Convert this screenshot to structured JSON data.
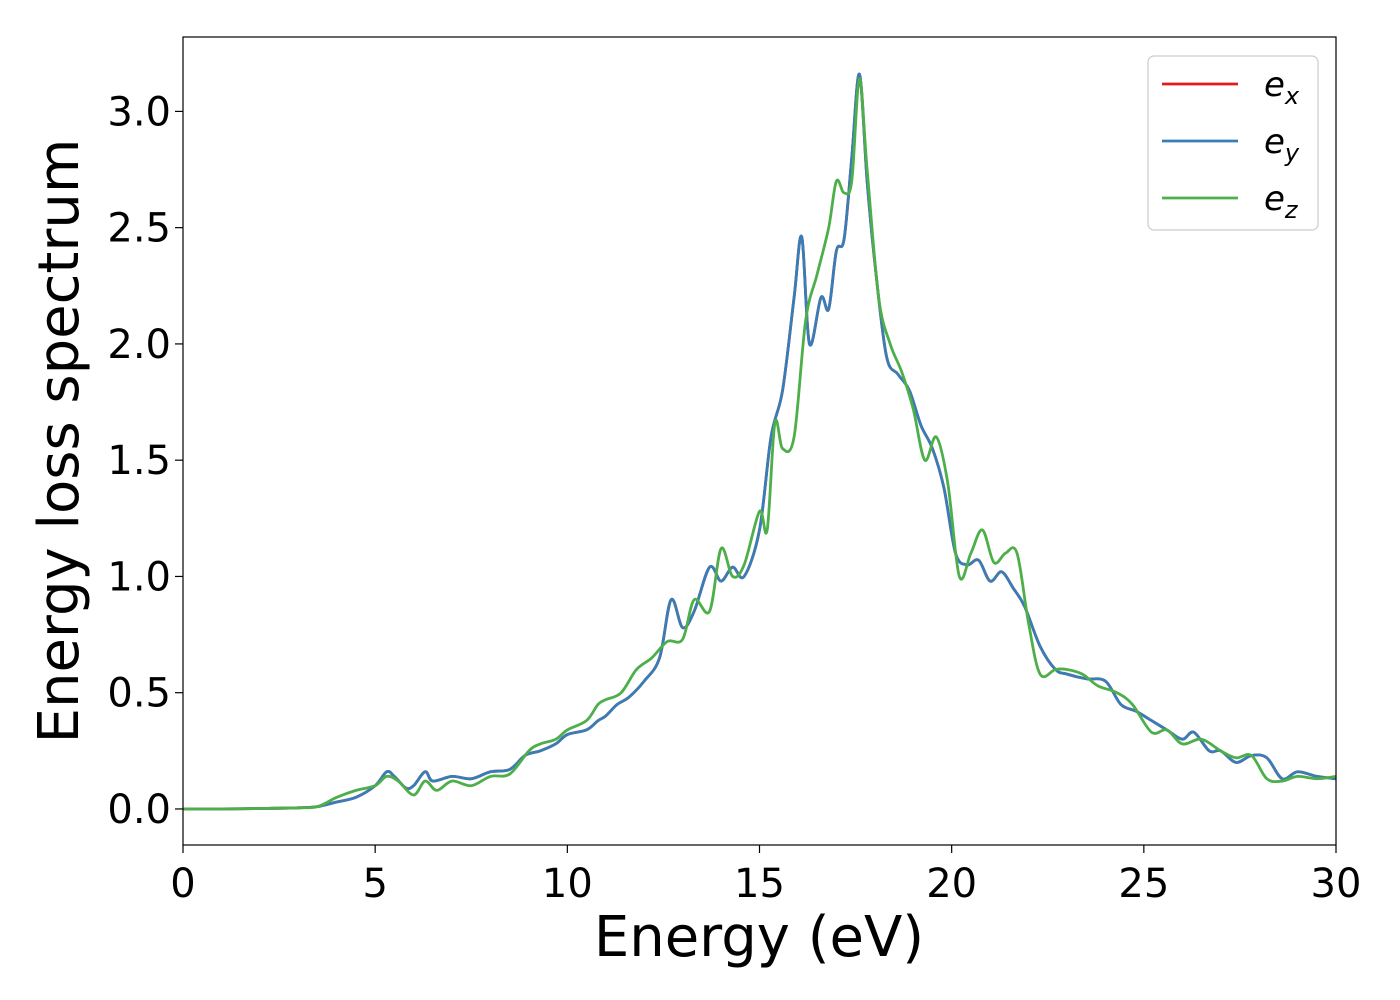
{
  "chart_data": {
    "type": "line",
    "xlabel": "Energy (eV)",
    "ylabel": "Energy loss spectrum",
    "xlim": [
      0,
      30
    ],
    "ylim": [
      -0.155,
      3.32
    ],
    "xticks": [
      "0",
      "5",
      "10",
      "15",
      "20",
      "25",
      "30"
    ],
    "yticks": [
      "0.0",
      "0.5",
      "1.0",
      "1.5",
      "2.0",
      "2.5",
      "3.0"
    ],
    "grid": false,
    "legend_position": "top-right",
    "series": [
      {
        "name": "x",
        "label_base": "e",
        "label_sub": "x",
        "color": "#e41a1c",
        "x": [
          0,
          1,
          2,
          3,
          3.5,
          4,
          4.5,
          5,
          5.3,
          5.5,
          5.8,
          6,
          6.3,
          6.5,
          7,
          7.5,
          8,
          8.5,
          8.9,
          9.3,
          9.7,
          10,
          10.5,
          10.8,
          11,
          11.3,
          11.6,
          12,
          12.4,
          12.7,
          13,
          13.3,
          13.7,
          14,
          14.3,
          14.6,
          15,
          15.3,
          15.6,
          15.9,
          16.1,
          16.3,
          16.6,
          16.8,
          17,
          17.2,
          17.4,
          17.6,
          17.8,
          18,
          18.3,
          18.6,
          18.9,
          19.2,
          19.5,
          19.8,
          20.1,
          20.4,
          20.7,
          21,
          21.3,
          21.6,
          21.9,
          22.3,
          22.7,
          23,
          23.5,
          24,
          24.4,
          24.8,
          25.2,
          25.6,
          26,
          26.3,
          26.7,
          27,
          27.4,
          27.8,
          28.2,
          28.6,
          29,
          29.5,
          30
        ],
        "y": [
          0,
          0,
          0.002,
          0.005,
          0.01,
          0.03,
          0.05,
          0.1,
          0.16,
          0.14,
          0.09,
          0.1,
          0.16,
          0.12,
          0.14,
          0.13,
          0.16,
          0.17,
          0.23,
          0.25,
          0.28,
          0.32,
          0.34,
          0.38,
          0.4,
          0.45,
          0.48,
          0.55,
          0.65,
          0.9,
          0.78,
          0.85,
          1.04,
          0.98,
          1.04,
          1.0,
          1.2,
          1.6,
          1.8,
          2.2,
          2.46,
          2.0,
          2.2,
          2.15,
          2.4,
          2.45,
          2.8,
          3.16,
          2.7,
          2.35,
          1.95,
          1.87,
          1.8,
          1.65,
          1.55,
          1.38,
          1.1,
          1.05,
          1.07,
          0.98,
          1.02,
          0.95,
          0.87,
          0.7,
          0.6,
          0.58,
          0.56,
          0.55,
          0.45,
          0.42,
          0.38,
          0.34,
          0.3,
          0.33,
          0.25,
          0.25,
          0.2,
          0.23,
          0.22,
          0.13,
          0.16,
          0.14,
          0.13
        ]
      },
      {
        "name": "y",
        "label_base": "e",
        "label_sub": "y",
        "color": "#377eb8",
        "x": [
          0,
          1,
          2,
          3,
          3.5,
          4,
          4.5,
          5,
          5.3,
          5.5,
          5.8,
          6,
          6.3,
          6.5,
          7,
          7.5,
          8,
          8.5,
          8.9,
          9.3,
          9.7,
          10,
          10.5,
          10.8,
          11,
          11.3,
          11.6,
          12,
          12.4,
          12.7,
          13,
          13.3,
          13.7,
          14,
          14.3,
          14.6,
          15,
          15.3,
          15.6,
          15.9,
          16.1,
          16.3,
          16.6,
          16.8,
          17,
          17.2,
          17.4,
          17.6,
          17.8,
          18,
          18.3,
          18.6,
          18.9,
          19.2,
          19.5,
          19.8,
          20.1,
          20.4,
          20.7,
          21,
          21.3,
          21.6,
          21.9,
          22.3,
          22.7,
          23,
          23.5,
          24,
          24.4,
          24.8,
          25.2,
          25.6,
          26,
          26.3,
          26.7,
          27,
          27.4,
          27.8,
          28.2,
          28.6,
          29,
          29.5,
          30
        ],
        "y": [
          0,
          0,
          0.002,
          0.005,
          0.01,
          0.03,
          0.05,
          0.1,
          0.16,
          0.14,
          0.09,
          0.1,
          0.16,
          0.12,
          0.14,
          0.13,
          0.16,
          0.17,
          0.23,
          0.25,
          0.28,
          0.32,
          0.34,
          0.38,
          0.4,
          0.45,
          0.48,
          0.55,
          0.65,
          0.9,
          0.78,
          0.85,
          1.04,
          0.98,
          1.04,
          1.0,
          1.2,
          1.6,
          1.8,
          2.2,
          2.46,
          2.0,
          2.2,
          2.15,
          2.4,
          2.45,
          2.8,
          3.16,
          2.7,
          2.35,
          1.95,
          1.87,
          1.8,
          1.65,
          1.55,
          1.38,
          1.1,
          1.05,
          1.07,
          0.98,
          1.02,
          0.95,
          0.87,
          0.7,
          0.6,
          0.58,
          0.56,
          0.55,
          0.45,
          0.42,
          0.38,
          0.34,
          0.3,
          0.33,
          0.25,
          0.25,
          0.2,
          0.23,
          0.22,
          0.13,
          0.16,
          0.14,
          0.13
        ]
      },
      {
        "name": "z",
        "label_base": "e",
        "label_sub": "z",
        "color": "#4daf4a",
        "x": [
          0,
          1,
          2,
          3,
          3.5,
          4,
          4.5,
          5,
          5.3,
          5.6,
          6,
          6.3,
          6.6,
          7,
          7.5,
          8,
          8.5,
          9,
          9.3,
          9.7,
          10,
          10.5,
          10.8,
          11,
          11.4,
          11.8,
          12.2,
          12.6,
          13,
          13.3,
          13.7,
          14,
          14.3,
          14.6,
          15,
          15.2,
          15.4,
          15.6,
          15.9,
          16.2,
          16.5,
          16.8,
          17,
          17.2,
          17.4,
          17.6,
          17.8,
          18.1,
          18.4,
          18.7,
          19,
          19.3,
          19.6,
          19.9,
          20.2,
          20.5,
          20.8,
          21.1,
          21.4,
          21.7,
          22,
          22.3,
          22.7,
          23,
          23.4,
          23.8,
          24.3,
          24.7,
          25.2,
          25.6,
          26,
          26.5,
          27,
          27.4,
          27.8,
          28.2,
          28.6,
          29,
          29.5,
          30
        ],
        "y": [
          0,
          0,
          0.002,
          0.005,
          0.01,
          0.05,
          0.08,
          0.1,
          0.14,
          0.12,
          0.06,
          0.12,
          0.08,
          0.12,
          0.1,
          0.14,
          0.15,
          0.25,
          0.28,
          0.3,
          0.34,
          0.38,
          0.45,
          0.47,
          0.5,
          0.6,
          0.65,
          0.72,
          0.73,
          0.9,
          0.85,
          1.12,
          1.0,
          1.05,
          1.28,
          1.2,
          1.66,
          1.55,
          1.6,
          2.1,
          2.3,
          2.5,
          2.7,
          2.65,
          2.7,
          3.14,
          2.75,
          2.2,
          2.0,
          1.88,
          1.72,
          1.5,
          1.6,
          1.4,
          1.0,
          1.1,
          1.2,
          1.06,
          1.1,
          1.1,
          0.8,
          0.58,
          0.6,
          0.6,
          0.58,
          0.53,
          0.5,
          0.45,
          0.33,
          0.34,
          0.28,
          0.3,
          0.25,
          0.22,
          0.23,
          0.13,
          0.12,
          0.14,
          0.13,
          0.14
        ]
      }
    ]
  }
}
